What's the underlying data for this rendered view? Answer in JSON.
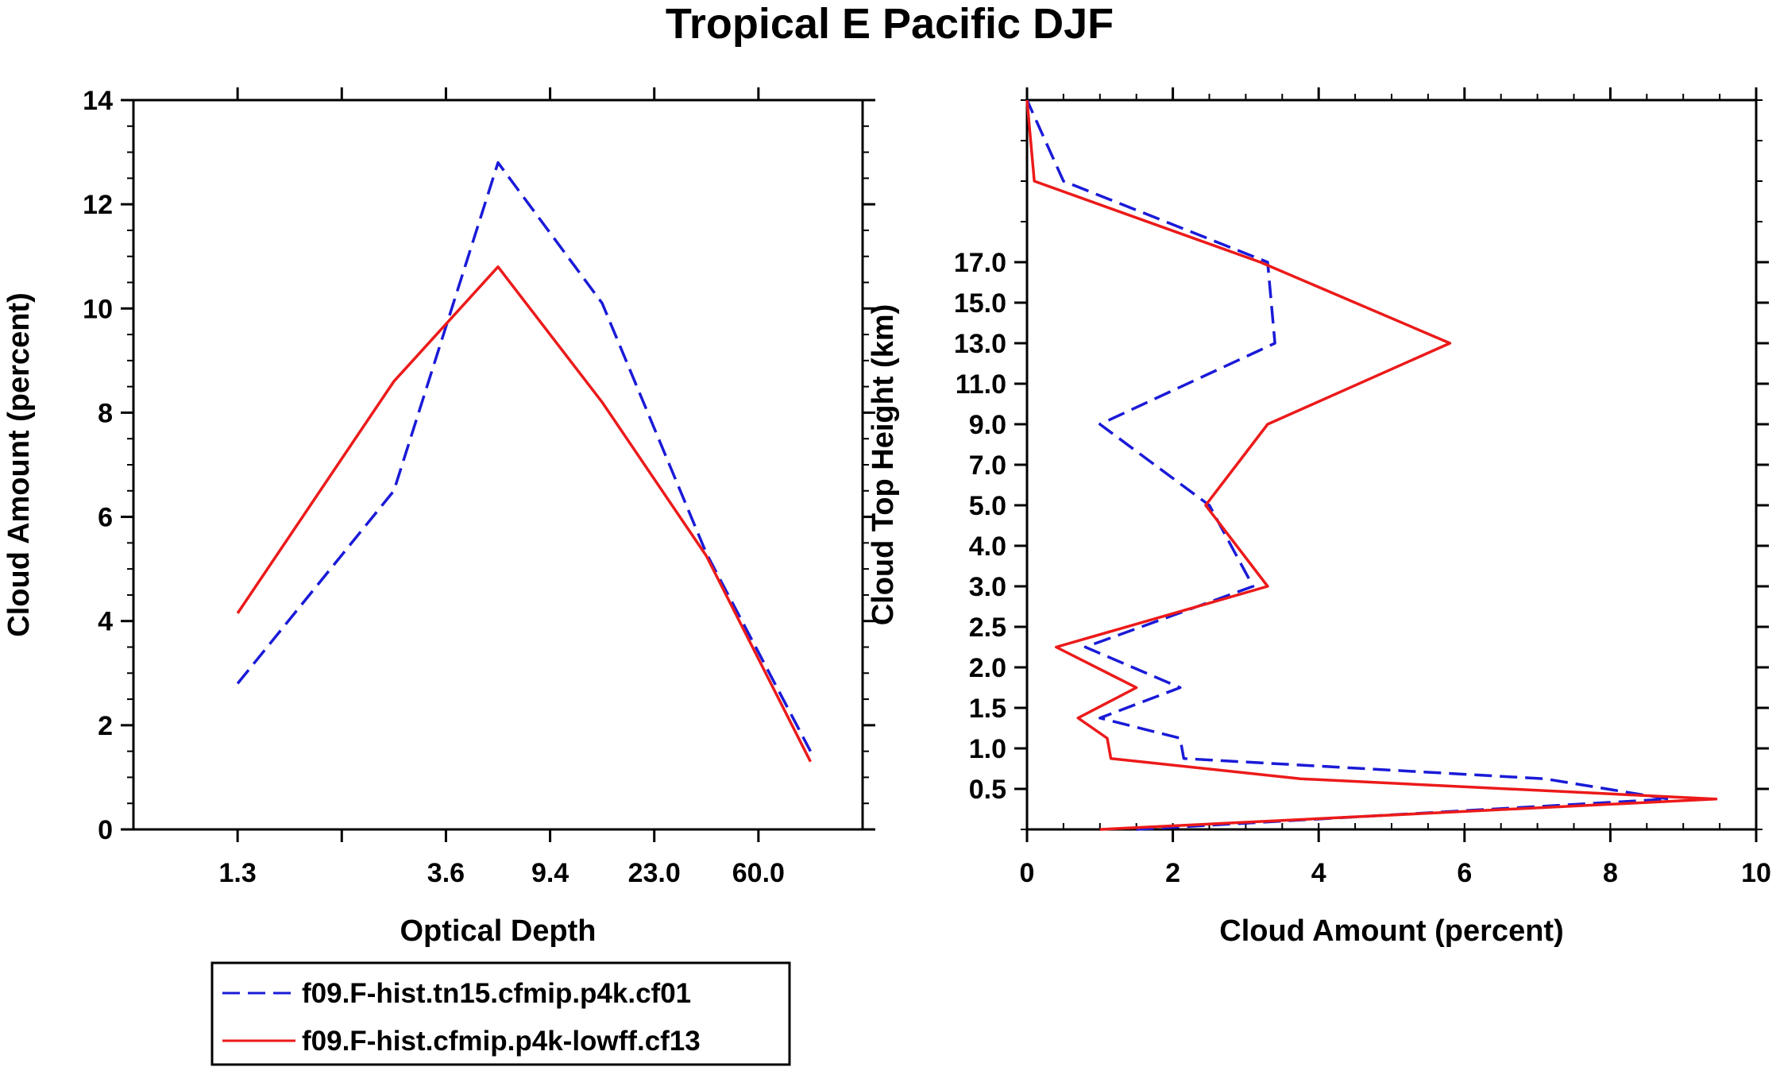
{
  "title": "Tropical E Pacific DJF",
  "colors": {
    "blue": "#1a1ad8",
    "red": "#ec1a1a",
    "axis": "#000000"
  },
  "legend": {
    "entries": [
      {
        "label": "f09.F-hist.tn15.cfmip.p4k.cf01",
        "color": "#1a1ad8",
        "style": "dashed"
      },
      {
        "label": "f09.F-hist.cfmip.p4k-lowff.cf13",
        "color": "#ec1a1a",
        "style": "solid"
      }
    ]
  },
  "chart_data": [
    {
      "type": "line",
      "xlabel": "Optical Depth",
      "ylabel": "Cloud Amount (percent)",
      "xlim": [
        0,
        7
      ],
      "ylim": [
        0,
        14
      ],
      "x_tick_positions": [
        1,
        2,
        3,
        4,
        5,
        6
      ],
      "x_tick_labels": [
        "1.3",
        "3.6",
        "9.4",
        "23.0",
        "60.0"
      ],
      "x_label_positions": [
        1,
        3,
        4,
        5,
        6
      ],
      "x_bins": [
        0,
        2,
        3,
        4,
        5,
        6,
        7
      ],
      "y_ticks": [
        0,
        2,
        4,
        6,
        8,
        10,
        12,
        14
      ],
      "y_minor_step": 0.5,
      "series": [
        {
          "name": "f09.F-hist.tn15.cfmip.p4k.cf01",
          "style": "dashed",
          "color": "#1a1ad8",
          "values": [
            2.8,
            6.5,
            12.8,
            10.1,
            5.3,
            1.5
          ]
        },
        {
          "name": "f09.F-hist.cfmip.p4k-lowff.cf13",
          "style": "solid",
          "color": "#ec1a1a",
          "values": [
            4.15,
            8.6,
            10.8,
            8.2,
            5.25,
            1.3
          ]
        }
      ]
    },
    {
      "type": "line",
      "orientation": "horizontal",
      "xlabel": "Cloud Amount (percent)",
      "ylabel": "Cloud Top Height (km)",
      "xlim": [
        0,
        10
      ],
      "x_ticks": [
        0,
        2,
        4,
        6,
        8,
        10
      ],
      "y_levels": [
        "0.5",
        "1.0",
        "1.5",
        "2.0",
        "2.5",
        "3.0",
        "4.0",
        "5.0",
        "7.0",
        "9.0",
        "11.0",
        "13.0",
        "15.0",
        "17.0"
      ],
      "series": [
        {
          "name": "f09.F-hist.tn15.cfmip.p4k.cf01",
          "style": "dashed",
          "color": "#1a1ad8",
          "values": [
            1.5,
            8.8,
            7.1,
            2.15,
            2.1,
            1.0,
            2.1,
            0.8,
            3.1,
            2.5,
            1.0,
            3.4,
            3.3,
            0.5,
            0.0
          ],
          "levels": [
            0.0,
            0.75,
            1.25,
            1.75,
            2.25,
            2.75,
            3.5,
            4.5,
            6.0,
            8.0,
            10.0,
            12.0,
            14.0,
            16.0,
            18.0
          ]
        },
        {
          "name": "f09.F-hist.cfmip.p4k-lowff.cf13",
          "style": "solid",
          "color": "#ec1a1a",
          "values": [
            1.0,
            9.45,
            3.75,
            1.15,
            1.1,
            0.7,
            1.5,
            0.4,
            3.3,
            2.45,
            3.3,
            5.8,
            3.2,
            0.1,
            0.05,
            0.0
          ],
          "levels": [
            0.0,
            0.75,
            1.25,
            1.75,
            2.25,
            2.75,
            3.5,
            4.5,
            6.0,
            8.0,
            10.0,
            12.0,
            14.0,
            16.0,
            17.0,
            18.0
          ]
        }
      ]
    }
  ]
}
